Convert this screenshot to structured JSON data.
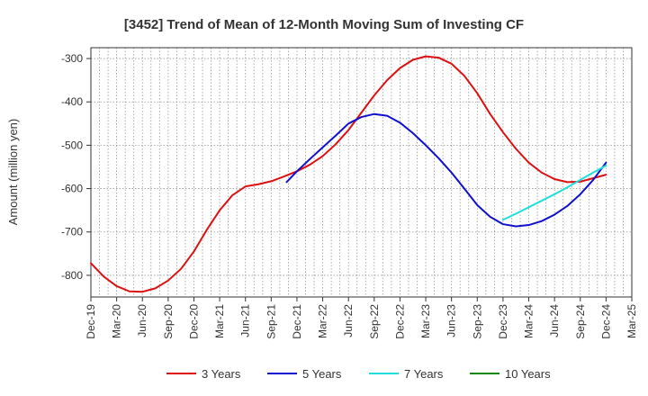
{
  "chart_data": {
    "type": "line",
    "title": "[3452]  Trend of Mean of 12-Month Moving Sum of Investing CF",
    "ylabel": "Amount (million yen)",
    "xlabel": "",
    "ylim": [
      -850,
      -275
    ],
    "y_ticks": [
      -300,
      -400,
      -500,
      -600,
      -700,
      -800
    ],
    "y_tick_labels": [
      "-300",
      "-400",
      "-500",
      "-600",
      "-700",
      "-800"
    ],
    "x_ticks": [
      "Dec-19",
      "Mar-20",
      "Jun-20",
      "Sep-20",
      "Dec-20",
      "Mar-21",
      "Jun-21",
      "Sep-21",
      "Dec-21",
      "Mar-22",
      "Jun-22",
      "Sep-22",
      "Dec-22",
      "Mar-23",
      "Jun-23",
      "Sep-23",
      "Dec-23",
      "Mar-24",
      "Jun-24",
      "Sep-24",
      "Dec-24",
      "Mar-25"
    ],
    "grid": true,
    "legend_position": "bottom",
    "series": [
      {
        "name": "3 Years",
        "color": "#dd1111",
        "x": [
          0,
          0.5,
          1,
          1.5,
          2,
          2.5,
          3,
          3.5,
          4,
          4.5,
          5,
          5.5,
          6,
          6.5,
          7,
          7.5,
          8,
          8.5,
          9,
          9.5,
          10,
          10.5,
          11,
          11.5,
          12,
          12.5,
          13,
          13.5,
          14,
          14.5,
          15,
          15.5,
          16,
          16.5,
          17,
          17.5,
          18,
          18.5,
          19,
          19.5,
          20
        ],
        "values": [
          -772,
          -803,
          -825,
          -837,
          -838,
          -830,
          -812,
          -785,
          -745,
          -695,
          -650,
          -615,
          -595,
          -590,
          -583,
          -572,
          -560,
          -545,
          -525,
          -498,
          -465,
          -425,
          -385,
          -350,
          -322,
          -303,
          -295,
          -298,
          -312,
          -340,
          -380,
          -428,
          -470,
          -508,
          -540,
          -563,
          -578,
          -585,
          -584,
          -576,
          -568
        ]
      },
      {
        "name": "5 Years",
        "color": "#1111cc",
        "x": [
          7.6,
          8,
          8.5,
          9,
          9.5,
          10,
          10.5,
          11,
          11.5,
          12,
          12.5,
          13,
          13.5,
          14,
          14.5,
          15,
          15.5,
          16,
          16.5,
          17,
          17.5,
          18,
          18.5,
          19,
          19.5,
          20
        ],
        "values": [
          -585,
          -560,
          -532,
          -505,
          -478,
          -450,
          -435,
          -428,
          -432,
          -448,
          -472,
          -500,
          -530,
          -563,
          -600,
          -638,
          -665,
          -682,
          -687,
          -684,
          -675,
          -660,
          -640,
          -613,
          -580,
          -540
        ]
      },
      {
        "name": "7 Years",
        "color": "#22dddd",
        "x": [
          16,
          16.5,
          17,
          17.5,
          18,
          18.5,
          19,
          19.5,
          20
        ],
        "values": [
          -672,
          -658,
          -643,
          -628,
          -613,
          -597,
          -580,
          -563,
          -547
        ]
      },
      {
        "name": "10 Years",
        "color": "#118811",
        "x": [],
        "values": []
      }
    ]
  }
}
